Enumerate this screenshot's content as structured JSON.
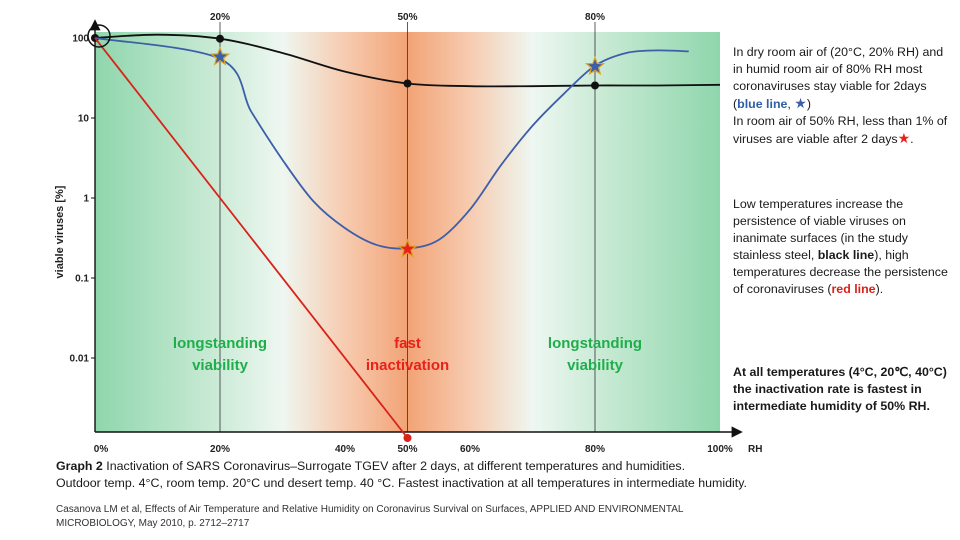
{
  "chart_data": {
    "type": "line",
    "xlabel": "RH",
    "ylabel": "viable viruses [%]",
    "y_scale": "log",
    "xlim": [
      0,
      100
    ],
    "ylim": [
      0.001,
      100
    ],
    "y_ticks": [
      {
        "value": 100,
        "label": "100"
      },
      {
        "value": 10,
        "label": "10"
      },
      {
        "value": 1,
        "label": "1"
      },
      {
        "value": 0.1,
        "label": "0.1"
      },
      {
        "value": 0.01,
        "label": "0.01"
      }
    ],
    "x_ticks": [
      {
        "value": 0,
        "label": "0%"
      },
      {
        "value": 20,
        "label": "20%"
      },
      {
        "value": 40,
        "label": "40%"
      },
      {
        "value": 50,
        "label": "50%"
      },
      {
        "value": 60,
        "label": "60%"
      },
      {
        "value": 80,
        "label": "80%"
      },
      {
        "value": 100,
        "label": "100%"
      }
    ],
    "top_labels": [
      "20%",
      "50%",
      "80%"
    ],
    "reference_lines_x": [
      20,
      50,
      80
    ],
    "series": [
      {
        "color": "#111111",
        "x": [
          0,
          10,
          20,
          30,
          40,
          50,
          60,
          70,
          80,
          90,
          100
        ],
        "values": [
          100,
          110,
          98,
          65,
          38,
          27,
          25,
          25,
          25.5,
          25.5,
          26
        ],
        "markers": [
          {
            "x": 0,
            "y": 100
          },
          {
            "x": 20,
            "y": 98
          },
          {
            "x": 50,
            "y": 27
          },
          {
            "x": 80,
            "y": 25.5
          }
        ]
      },
      {
        "color": "#3d5ea8",
        "x": [
          0,
          20,
          25,
          30,
          35,
          40,
          45,
          50,
          55,
          60,
          65,
          70,
          75,
          80,
          85,
          90,
          95
        ],
        "values": [
          100,
          55,
          12,
          3,
          0.9,
          0.42,
          0.26,
          0.235,
          0.3,
          0.72,
          2.6,
          8,
          20,
          45,
          65,
          70,
          68
        ],
        "stars": [
          {
            "x": 20,
            "y": 58,
            "color": "#3d5ea8"
          },
          {
            "x": 80,
            "y": 44,
            "color": "#3d5ea8"
          },
          {
            "x": 50,
            "y": 0.23,
            "color": "#e8211a"
          }
        ]
      },
      {
        "color": "#d9221a",
        "x": [
          0,
          50
        ],
        "values": [
          100,
          0.001
        ],
        "markers": [
          {
            "x": 50,
            "y": 0.001
          }
        ]
      }
    ],
    "zone_labels": [
      {
        "text": [
          "longstanding",
          "viability"
        ],
        "x": 20,
        "color": "#1fae4b"
      },
      {
        "text": [
          "fast",
          "inactivation"
        ],
        "x": 50,
        "color": "#e8211a"
      },
      {
        "text": [
          "longstanding",
          "viability"
        ],
        "x": 80,
        "color": "#1fae4b"
      }
    ],
    "background_gradient": {
      "green": "#8fd6ac",
      "orange": "#f2a376",
      "light": "#eaf6ef"
    }
  },
  "panel": {
    "p1_a": "In dry room air of (20°C, 20% RH) and in humid room air of 80% RH most coronaviruses stay viable for 2days (",
    "p1_blue": "blue line",
    "p1_b": ", ",
    "p1_c": ")",
    "p1_d": "In room air of 50% RH, less than 1% of viruses are viable after 2 days",
    "p1_e": ".",
    "star_glyph": "★",
    "p2_a": "Low temperatures increase the persistence of viable viruses on inanimate surfaces (in the study stainless steel, ",
    "p2_black": "black line",
    "p2_b": "), high temperatures decrease the persistence of coronaviruses (",
    "p2_red": "red line",
    "p2_c": ").",
    "p3": "At all temperatures (4°C, 20℃, 40°C) the inactivation rate is fastest in intermediate humidity of 50% RH."
  },
  "caption": {
    "label": "Graph 2",
    "line1": " Inactivation of SARS Coronavirus–Surrogate TGEV after 2 days, at different temperatures and humidities.",
    "line2": "Outdoor temp. 4°C, room temp. 20°C und desert temp. 40 °C. Fastest inactivation at all temperatures in intermediate humidity."
  },
  "source": "Casanova LM et al, Effects of Air Temperature and Relative Humidity on Coronavirus Survival on Surfaces, APPLIED AND ENVIRONMENTAL MICROBIOLOGY, May 2010, p. 2712–2717"
}
